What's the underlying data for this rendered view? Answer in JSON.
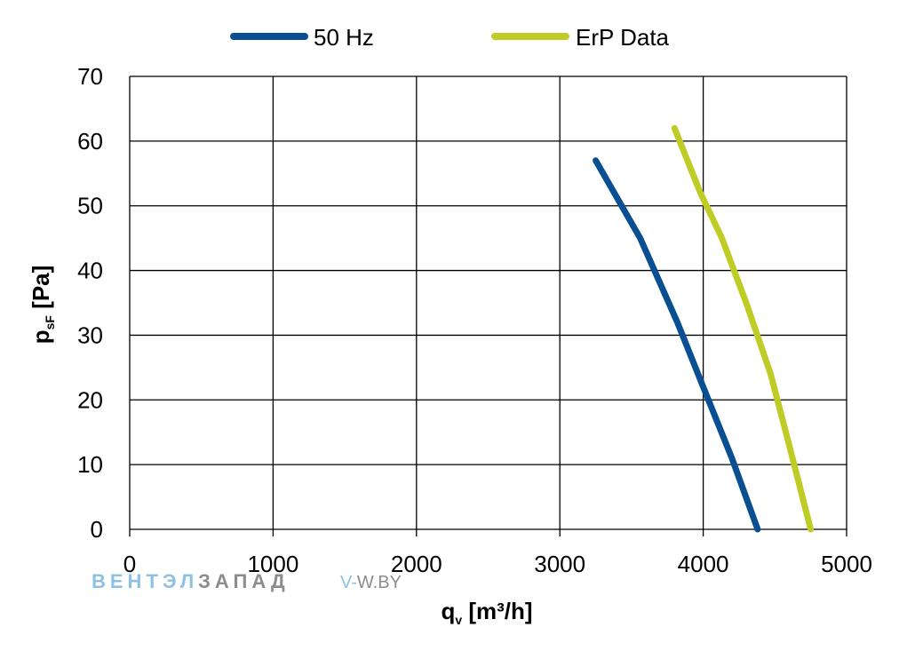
{
  "chart_data": {
    "type": "line",
    "title": "",
    "xlabel": {
      "main": "q",
      "sub": "v",
      "rest": " [m³/h]"
    },
    "ylabel": {
      "main": "p",
      "sub": "sF",
      "rest": " [Pa]"
    },
    "xlim": [
      0,
      5000
    ],
    "ylim": [
      0,
      70
    ],
    "xticks": [
      "0",
      "1000",
      "2000",
      "3000",
      "4000",
      "5000"
    ],
    "yticks": [
      "0",
      "10",
      "20",
      "30",
      "40",
      "50",
      "60",
      "70"
    ],
    "grid": true,
    "legend": "top-center",
    "series": [
      {
        "name": "50 Hz",
        "color": "#0a4f91",
        "x": [
          3250,
          3560,
          3820,
          4000,
          4200,
          4380
        ],
        "y": [
          57,
          45,
          32,
          22,
          11,
          0
        ]
      },
      {
        "name": "ErP Data",
        "color": "#bfcc25",
        "x": [
          3800,
          3980,
          4130,
          4300,
          4470,
          4600,
          4750
        ],
        "y": [
          62,
          52,
          45,
          35,
          24,
          13,
          0
        ]
      }
    ]
  },
  "watermark": {
    "part1": "ВЕНТЭЛ",
    "part2": "ЗАПАД",
    "site_prefix": "V-",
    "site_rest": "W.BY",
    "color1": "#8fc1e3",
    "color2": "#8c8c8c"
  }
}
